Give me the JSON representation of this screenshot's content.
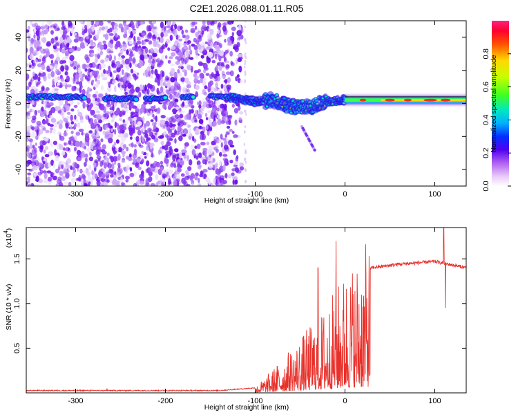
{
  "title": "C2E1.2026.088.01.11.R05",
  "chart_data": [
    {
      "type": "heatmap",
      "xlabel": "Height of straight line (km)",
      "ylabel": "Frequency (Hz)",
      "xlim": [
        -355,
        135
      ],
      "ylim": [
        -50,
        50
      ],
      "x_ticks": [
        "-300",
        "-200",
        "-100",
        "0",
        "100"
      ],
      "y_ticks": [
        "40",
        "20",
        "0",
        "-20",
        "-40"
      ],
      "colorbar": {
        "label": "Normalized spectral amplitude",
        "range": [
          0,
          1
        ],
        "ticks": [
          "0.0",
          "0.2",
          "0.4",
          "0.6",
          "0.8"
        ]
      },
      "signal_track": [
        {
          "x": -310,
          "y": 4
        },
        {
          "x": -260,
          "y": 3
        },
        {
          "x": -220,
          "y": 3
        },
        {
          "x": -180,
          "y": 4
        },
        {
          "x": -140,
          "y": 4
        },
        {
          "x": -120,
          "y": 3
        },
        {
          "x": -100,
          "y": 1
        },
        {
          "x": -80,
          "y": 2
        },
        {
          "x": -60,
          "y": -2
        },
        {
          "x": -40,
          "y": -2
        },
        {
          "x": -20,
          "y": 1
        },
        {
          "x": 0,
          "y": 2
        },
        {
          "x": 40,
          "y": 2
        },
        {
          "x": 80,
          "y": 2
        },
        {
          "x": 100,
          "y": 2
        },
        {
          "x": 135,
          "y": 2
        }
      ]
    },
    {
      "type": "line",
      "xlabel": "Height of straight line (km)",
      "ylabel": "SNR (10 * v/v)",
      "y_scale_label": "(x10",
      "y_scale_exp": "4",
      "xlim": [
        -355,
        135
      ],
      "ylim": [
        0,
        1.85
      ],
      "x_ticks": [
        "-300",
        "-200",
        "-100",
        "0",
        "100"
      ],
      "y_ticks": [
        "0.5",
        "1.0",
        "1.5"
      ],
      "series_color": "#e8302a",
      "envelope": [
        {
          "x": -355,
          "y": 0.02
        },
        {
          "x": -140,
          "y": 0.02
        },
        {
          "x": -100,
          "y": 0.05
        },
        {
          "x": -80,
          "y": 0.22
        },
        {
          "x": -60,
          "y": 0.4
        },
        {
          "x": -40,
          "y": 0.6
        },
        {
          "x": -20,
          "y": 0.8
        },
        {
          "x": 0,
          "y": 1.1
        },
        {
          "x": 15,
          "y": 1.25
        },
        {
          "x": 30,
          "y": 1.4
        },
        {
          "x": 60,
          "y": 1.44
        },
        {
          "x": 100,
          "y": 1.47
        },
        {
          "x": 135,
          "y": 1.4
        }
      ],
      "features": [
        {
          "x": -265,
          "y": 0.05
        },
        {
          "x": -30,
          "y": 1.4
        },
        {
          "x": -10,
          "y": 1.7
        },
        {
          "x": 12,
          "y": 0.3
        },
        {
          "x": 110,
          "y": 1.85
        },
        {
          "x": 112,
          "y": 0.95
        }
      ]
    }
  ]
}
